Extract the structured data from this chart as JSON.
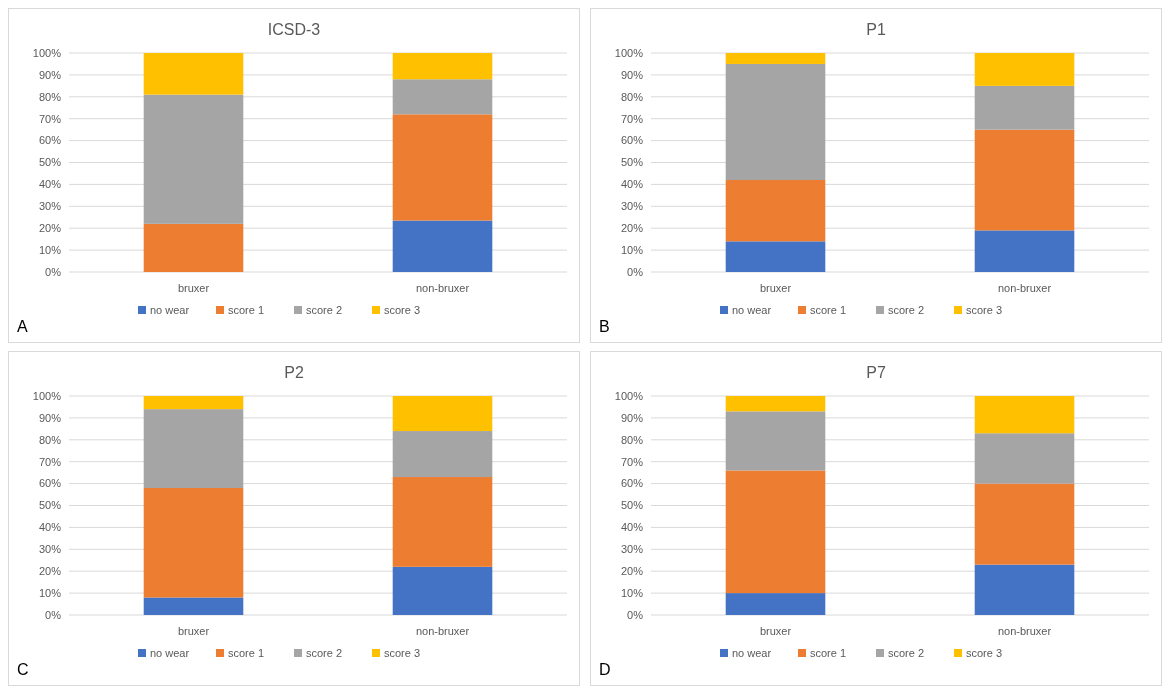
{
  "chart_data": [
    {
      "type": "bar",
      "stacked": true,
      "title": "ICSD-3",
      "categories": [
        "bruxer",
        "non-bruxer"
      ],
      "series": [
        {
          "name": "no wear",
          "color": "#4472c4",
          "values": [
            0,
            23.5
          ]
        },
        {
          "name": "score 1",
          "color": "#ed7d31",
          "values": [
            22,
            48.5
          ]
        },
        {
          "name": "score 2",
          "color": "#a5a5a5",
          "values": [
            59,
            16
          ]
        },
        {
          "name": "score 3",
          "color": "#ffc000",
          "values": [
            19,
            12
          ]
        }
      ],
      "ylim": [
        0,
        100
      ],
      "yticks": [
        {
          "value": 0,
          "label": "0%"
        },
        {
          "value": 10,
          "label": "10%"
        },
        {
          "value": 20,
          "label": "20%"
        },
        {
          "value": 30,
          "label": "30%"
        },
        {
          "value": 40,
          "label": "40%"
        },
        {
          "value": 50,
          "label": "50%"
        },
        {
          "value": 60,
          "label": "60%"
        },
        {
          "value": 70,
          "label": "70%"
        },
        {
          "value": 80,
          "label": "80%"
        },
        {
          "value": 90,
          "label": "90%"
        },
        {
          "value": 100,
          "label": "100%"
        }
      ],
      "grid": "y",
      "legend": "bottom",
      "annotations": [
        "A"
      ]
    },
    {
      "type": "bar",
      "stacked": true,
      "title": "P1",
      "categories": [
        "bruxer",
        "non-bruxer"
      ],
      "series": [
        {
          "name": "no wear",
          "color": "#4472c4",
          "values": [
            14,
            19
          ]
        },
        {
          "name": "score 1",
          "color": "#ed7d31",
          "values": [
            28,
            46
          ]
        },
        {
          "name": "score 2",
          "color": "#a5a5a5",
          "values": [
            53,
            20
          ]
        },
        {
          "name": "score 3",
          "color": "#ffc000",
          "values": [
            5,
            15
          ]
        }
      ],
      "ylim": [
        0,
        100
      ],
      "yticks": [
        {
          "value": 0,
          "label": "0%"
        },
        {
          "value": 10,
          "label": "10%"
        },
        {
          "value": 20,
          "label": "20%"
        },
        {
          "value": 30,
          "label": "30%"
        },
        {
          "value": 40,
          "label": "40%"
        },
        {
          "value": 50,
          "label": "50%"
        },
        {
          "value": 60,
          "label": "60%"
        },
        {
          "value": 70,
          "label": "70%"
        },
        {
          "value": 80,
          "label": "80%"
        },
        {
          "value": 90,
          "label": "90%"
        },
        {
          "value": 100,
          "label": "100%"
        }
      ],
      "grid": "y",
      "legend": "bottom",
      "annotations": [
        "B"
      ]
    },
    {
      "type": "bar",
      "stacked": true,
      "title": "P2",
      "categories": [
        "bruxer",
        "non-bruxer"
      ],
      "series": [
        {
          "name": "no wear",
          "color": "#4472c4",
          "values": [
            8,
            22
          ]
        },
        {
          "name": "score 1",
          "color": "#ed7d31",
          "values": [
            50,
            41
          ]
        },
        {
          "name": "score 2",
          "color": "#a5a5a5",
          "values": [
            36,
            21
          ]
        },
        {
          "name": "score 3",
          "color": "#ffc000",
          "values": [
            6,
            16
          ]
        }
      ],
      "ylim": [
        0,
        100
      ],
      "yticks": [
        {
          "value": 0,
          "label": "0%"
        },
        {
          "value": 10,
          "label": "10%"
        },
        {
          "value": 20,
          "label": "20%"
        },
        {
          "value": 30,
          "label": "30%"
        },
        {
          "value": 40,
          "label": "40%"
        },
        {
          "value": 50,
          "label": "50%"
        },
        {
          "value": 60,
          "label": "60%"
        },
        {
          "value": 70,
          "label": "70%"
        },
        {
          "value": 80,
          "label": "80%"
        },
        {
          "value": 90,
          "label": "90%"
        },
        {
          "value": 100,
          "label": "100%"
        }
      ],
      "grid": "y",
      "legend": "bottom",
      "annotations": [
        "C"
      ]
    },
    {
      "type": "bar",
      "stacked": true,
      "title": "P7",
      "categories": [
        "bruxer",
        "non-bruxer"
      ],
      "series": [
        {
          "name": "no wear",
          "color": "#4472c4",
          "values": [
            10,
            23
          ]
        },
        {
          "name": "score 1",
          "color": "#ed7d31",
          "values": [
            56,
            37
          ]
        },
        {
          "name": "score 2",
          "color": "#a5a5a5",
          "values": [
            27,
            23
          ]
        },
        {
          "name": "score 3",
          "color": "#ffc000",
          "values": [
            7,
            17
          ]
        }
      ],
      "ylim": [
        0,
        100
      ],
      "yticks": [
        {
          "value": 0,
          "label": "0%"
        },
        {
          "value": 10,
          "label": "10%"
        },
        {
          "value": 20,
          "label": "20%"
        },
        {
          "value": 30,
          "label": "30%"
        },
        {
          "value": 40,
          "label": "40%"
        },
        {
          "value": 50,
          "label": "50%"
        },
        {
          "value": 60,
          "label": "60%"
        },
        {
          "value": 70,
          "label": "70%"
        },
        {
          "value": 80,
          "label": "80%"
        },
        {
          "value": 90,
          "label": "90%"
        },
        {
          "value": 100,
          "label": "100%"
        }
      ],
      "grid": "y",
      "legend": "bottom",
      "annotations": [
        "D"
      ]
    }
  ]
}
